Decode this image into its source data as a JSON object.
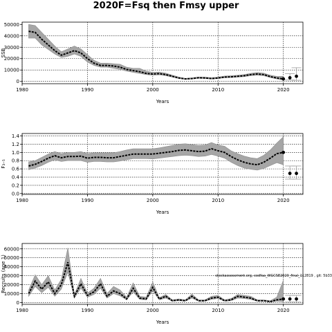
{
  "chart_data": {
    "type": "line",
    "title": "2020F=Fsq then Fmsy upper",
    "panels": [
      {
        "ylabel": "SSB",
        "xlabel": "Years",
        "xlim": [
          1980,
          2023
        ],
        "ylim": [
          -2000,
          52000
        ],
        "xticks": [
          1980,
          1990,
          2000,
          2010,
          2020
        ],
        "yticks": [
          0,
          10000,
          20000,
          30000,
          40000,
          50000
        ],
        "xgrid": [
          1980,
          1990,
          2000,
          2010,
          2020
        ],
        "ygrid": [
          0,
          10000,
          20000,
          30000,
          40000
        ],
        "years": [
          1981,
          1982,
          1983,
          1984,
          1985,
          1986,
          1987,
          1988,
          1989,
          1990,
          1991,
          1992,
          1993,
          1994,
          1995,
          1996,
          1997,
          1998,
          1999,
          2000,
          2001,
          2002,
          2003,
          2004,
          2005,
          2006,
          2007,
          2008,
          2009,
          2010,
          2011,
          2012,
          2013,
          2014,
          2015,
          2016,
          2017,
          2018,
          2019,
          2020
        ],
        "values": [
          44000,
          43000,
          37000,
          32000,
          27000,
          23000,
          25000,
          27000,
          25000,
          20000,
          16000,
          14000,
          14000,
          13500,
          12500,
          10500,
          9500,
          8500,
          7000,
          6500,
          6800,
          6000,
          4500,
          3000,
          2200,
          2500,
          3200,
          3000,
          2500,
          3000,
          3800,
          4000,
          4500,
          5000,
          6000,
          6500,
          6000,
          4200,
          3000,
          2200
        ],
        "lower": [
          38000,
          38000,
          32000,
          28000,
          24000,
          21000,
          22000,
          24000,
          22000,
          17000,
          14000,
          12500,
          12500,
          11500,
          10500,
          9000,
          8000,
          7000,
          6000,
          5500,
          5800,
          5000,
          3800,
          2500,
          1800,
          2100,
          2700,
          2500,
          2100,
          2500,
          3200,
          3400,
          3800,
          4200,
          5000,
          5500,
          5000,
          3400,
          2200,
          1200
        ],
        "upper": [
          50000,
          49000,
          43000,
          37000,
          31000,
          26000,
          28500,
          31000,
          28500,
          23500,
          18500,
          16000,
          16000,
          15500,
          15000,
          12500,
          11500,
          11500,
          9000,
          8000,
          8200,
          7200,
          5500,
          3800,
          2700,
          3100,
          3900,
          3800,
          3200,
          3800,
          4700,
          5000,
          5400,
          6000,
          7100,
          7800,
          7200,
          5500,
          4400,
          4500
        ],
        "proj_years": [
          2021,
          2022
        ],
        "proj_values": [
          3200,
          4500
        ],
        "proj_lower": [
          1200,
          1000
        ],
        "proj_upper": [
          6800,
          12000
        ]
      },
      {
        "ylabel": "F₃₋₅",
        "xlabel": "Years",
        "xlim": [
          1980,
          2023
        ],
        "ylim": [
          -0.02,
          1.46
        ],
        "xticks": [
          1980,
          1990,
          2000,
          2010,
          2020
        ],
        "yticks": [
          0.0,
          0.2,
          0.4,
          0.6,
          0.8,
          1.0,
          1.2,
          1.4
        ],
        "ytick_labels": [
          "0.0",
          "0.2",
          "0.4",
          "0.6",
          "0.8",
          "1.0",
          "1.2",
          "1.4"
        ],
        "xgrid": [
          1980,
          1990,
          2000,
          2010,
          2020
        ],
        "ygrid": [
          0.0,
          0.2,
          0.4,
          0.6,
          0.8,
          1.0,
          1.2,
          1.4
        ],
        "years": [
          1981,
          1982,
          1983,
          1984,
          1985,
          1986,
          1987,
          1988,
          1989,
          1990,
          1991,
          1992,
          1993,
          1994,
          1995,
          1996,
          1997,
          1998,
          1999,
          2000,
          2001,
          2002,
          2003,
          2004,
          2005,
          2006,
          2007,
          2008,
          2009,
          2010,
          2011,
          2012,
          2013,
          2014,
          2015,
          2016,
          2017,
          2018,
          2019,
          2020
        ],
        "values": [
          0.67,
          0.71,
          0.78,
          0.86,
          0.92,
          0.87,
          0.9,
          0.9,
          0.91,
          0.86,
          0.88,
          0.88,
          0.87,
          0.87,
          0.9,
          0.93,
          0.96,
          0.96,
          0.96,
          0.96,
          0.98,
          1.0,
          1.02,
          1.05,
          1.06,
          1.04,
          1.02,
          1.03,
          1.09,
          1.04,
          1.0,
          0.9,
          0.82,
          0.76,
          0.72,
          0.7,
          0.76,
          0.86,
          0.97,
          1.0
        ],
        "lower": [
          0.58,
          0.62,
          0.68,
          0.76,
          0.82,
          0.78,
          0.8,
          0.8,
          0.8,
          0.76,
          0.78,
          0.78,
          0.77,
          0.77,
          0.79,
          0.82,
          0.85,
          0.85,
          0.85,
          0.84,
          0.86,
          0.88,
          0.9,
          0.92,
          0.93,
          0.92,
          0.9,
          0.91,
          0.95,
          0.91,
          0.86,
          0.76,
          0.68,
          0.62,
          0.59,
          0.57,
          0.61,
          0.68,
          0.75,
          0.7
        ],
        "upper": [
          0.77,
          0.8,
          0.88,
          0.96,
          1.02,
          0.97,
          1.0,
          1.0,
          1.02,
          0.97,
          0.99,
          0.99,
          0.99,
          0.99,
          1.02,
          1.06,
          1.09,
          1.09,
          1.09,
          1.09,
          1.11,
          1.14,
          1.17,
          1.2,
          1.21,
          1.19,
          1.17,
          1.18,
          1.24,
          1.18,
          1.15,
          1.04,
          0.97,
          0.91,
          0.87,
          0.85,
          0.93,
          1.06,
          1.23,
          1.38
        ],
        "proj_years": [
          2021,
          2022
        ],
        "proj_values": [
          0.49,
          0.49
        ],
        "proj_lower": [
          0.35,
          0.35
        ],
        "proj_upper": [
          0.67,
          0.67
        ]
      },
      {
        "ylabel": "Recruits (age 1)",
        "xlabel": "Years",
        "xlim": [
          1980,
          2023
        ],
        "ylim": [
          -2000,
          66000
        ],
        "xticks": [
          1980,
          1990,
          2000,
          2010,
          2020
        ],
        "yticks": [
          0,
          10000,
          20000,
          30000,
          40000,
          50000,
          60000
        ],
        "xgrid": [
          1980,
          1990,
          2000,
          2010,
          2020
        ],
        "ygrid": [
          0,
          10000,
          20000,
          30000,
          40000,
          50000,
          60000
        ],
        "years": [
          1981,
          1982,
          1983,
          1984,
          1985,
          1986,
          1987,
          1988,
          1989,
          1990,
          1991,
          1992,
          1993,
          1994,
          1995,
          1996,
          1997,
          1998,
          1999,
          2000,
          2001,
          2002,
          2003,
          2004,
          2005,
          2006,
          2007,
          2008,
          2009,
          2010,
          2011,
          2012,
          2013,
          2014,
          2015,
          2016,
          2017,
          2018,
          2019,
          2020
        ],
        "values": [
          10000,
          24000,
          15000,
          23000,
          10000,
          20000,
          45000,
          7000,
          21000,
          8000,
          12000,
          21000,
          7000,
          13000,
          10000,
          4000,
          16000,
          5000,
          4000,
          17000,
          4000,
          7000,
          2000,
          3000,
          2000,
          7000,
          2000,
          2000,
          5000,
          6000,
          2000,
          3000,
          7000,
          6000,
          5000,
          2000,
          2000,
          1000,
          3000,
          4000
        ],
        "lower": [
          7000,
          18000,
          11000,
          17000,
          7000,
          15000,
          34000,
          5000,
          16000,
          6000,
          9000,
          16000,
          5000,
          10000,
          7500,
          3000,
          12000,
          3500,
          3000,
          13000,
          3000,
          5000,
          1500,
          2000,
          1500,
          5000,
          1500,
          1500,
          3500,
          4500,
          1500,
          2000,
          5000,
          4500,
          3500,
          1500,
          1500,
          500,
          1500,
          1000
        ],
        "upper": [
          14000,
          31000,
          20000,
          30000,
          14000,
          26000,
          61000,
          9000,
          27000,
          10500,
          16000,
          27000,
          10000,
          18000,
          14000,
          6000,
          22000,
          7000,
          6000,
          23000,
          5500,
          9000,
          3000,
          4000,
          3000,
          9500,
          3000,
          3000,
          7000,
          8000,
          3000,
          4500,
          9000,
          8000,
          7000,
          3000,
          3000,
          2000,
          6000,
          25000
        ],
        "proj_years": [
          2021,
          2022
        ],
        "proj_values": [
          4000,
          4000
        ],
        "proj_lower": [
          500,
          500
        ],
        "proj_upper": [
          8000,
          8000
        ],
        "annotation": "stockassessment.org, codfaa_WGCSE2020_final_112819 , git: 5b33"
      }
    ]
  }
}
